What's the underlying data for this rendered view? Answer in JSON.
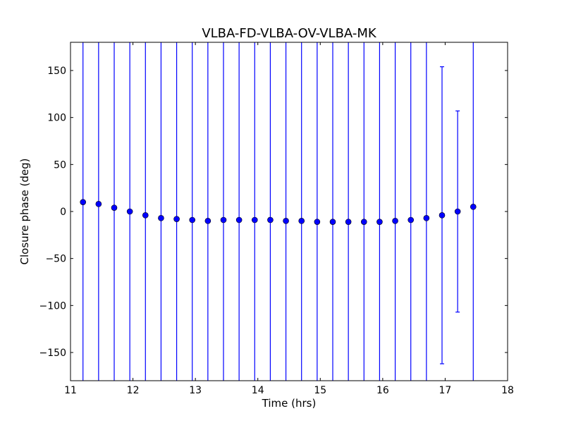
{
  "chart_data": {
    "type": "scatter",
    "title": "VLBA-FD-VLBA-OV-VLBA-MK",
    "xlabel": "Time (hrs)",
    "ylabel": "Closure phase (deg)",
    "xlim": [
      11,
      18
    ],
    "ylim": [
      -180,
      180
    ],
    "xticks": [
      11,
      12,
      13,
      14,
      15,
      16,
      17,
      18
    ],
    "yticks": [
      -150,
      -100,
      -50,
      0,
      50,
      100,
      150
    ],
    "grid": false,
    "marker_color": "#0000ff",
    "errorbar_color": "#0000ff",
    "series": [
      {
        "x": [
          11.2,
          11.45,
          11.7,
          11.95,
          12.2,
          12.45,
          12.7,
          12.95,
          13.2,
          13.45,
          13.7,
          13.95,
          14.2,
          14.45,
          14.7,
          14.95,
          15.2,
          15.45,
          15.7,
          15.95,
          16.2,
          16.45,
          16.7,
          16.95,
          17.2,
          17.45
        ],
        "y": [
          10,
          8,
          4,
          0,
          -4,
          -7,
          -8,
          -9,
          -10,
          -9,
          -9,
          -9,
          -9,
          -10,
          -10,
          -11,
          -11,
          -11,
          -11,
          -11,
          -10,
          -9,
          -7,
          -4,
          0,
          5
        ],
        "yerr": [
          null,
          null,
          null,
          null,
          null,
          null,
          null,
          null,
          null,
          null,
          null,
          null,
          null,
          null,
          null,
          null,
          null,
          null,
          null,
          null,
          null,
          null,
          null,
          158,
          107,
          null
        ]
      }
    ]
  }
}
